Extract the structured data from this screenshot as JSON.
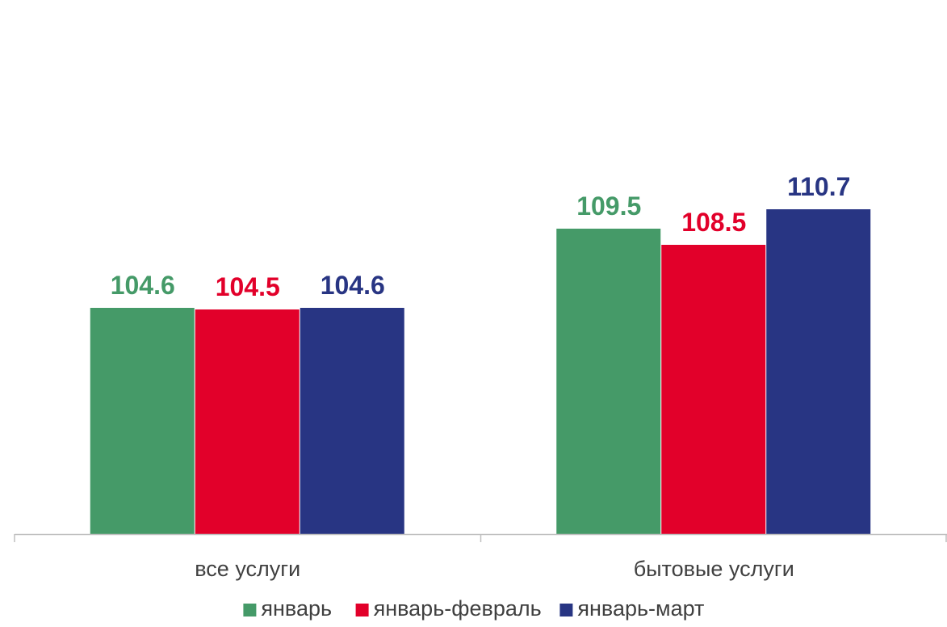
{
  "chart_data": {
    "type": "bar",
    "categories": [
      "все услуги",
      "бытовые услуги"
    ],
    "series": [
      {
        "name": "январь",
        "values": [
          104.6,
          109.5
        ],
        "color": "#459a68"
      },
      {
        "name": "январь-февраль",
        "values": [
          104.5,
          108.5
        ],
        "color": "#e2002a"
      },
      {
        "name": "январь-март",
        "values": [
          104.6,
          110.7
        ],
        "color": "#283583"
      }
    ],
    "value_labels": [
      [
        "104.6",
        "109.5"
      ],
      [
        "104.5",
        "108.5"
      ],
      [
        "104.6",
        "110.7"
      ]
    ],
    "ylim": [
      90.6,
      111.5
    ],
    "grid": false,
    "legend_position": "bottom",
    "title": "",
    "xlabel": "",
    "ylabel": ""
  }
}
